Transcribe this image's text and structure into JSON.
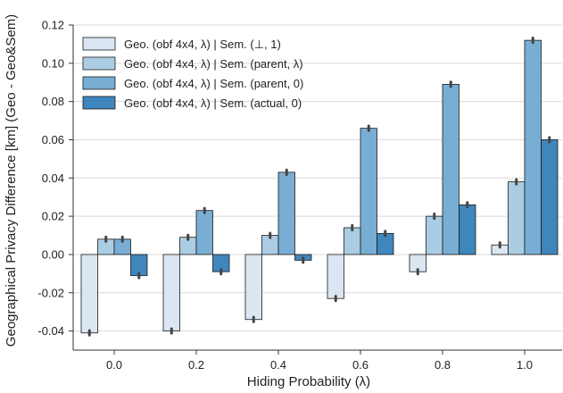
{
  "chart_data": {
    "type": "bar",
    "title": "",
    "xlabel": "Hiding Probability (λ)",
    "ylabel": "Geographical Privacy Difference [km] (Geo - Geo&Sem)",
    "categories": [
      "0.0",
      "0.2",
      "0.4",
      "0.6",
      "0.8",
      "1.0"
    ],
    "ylim": [
      -0.05,
      0.12
    ],
    "yticks": [
      -0.04,
      -0.02,
      0.0,
      0.02,
      0.04,
      0.06,
      0.08,
      0.1,
      0.12
    ],
    "ytick_labels": [
      "-0.04",
      "-0.02",
      "0.00",
      "0.02",
      "0.04",
      "0.06",
      "0.08",
      "0.10",
      "0.12"
    ],
    "grid": "horizontal",
    "legend_position": "top-left",
    "error_bars": true,
    "series": [
      {
        "name": "Geo. (obf 4x4, λ) | Sem. (⊥, 1)",
        "color": "#dae6f2",
        "values": [
          -0.041,
          -0.04,
          -0.034,
          -0.023,
          -0.009,
          0.005
        ]
      },
      {
        "name": "Geo. (obf 4x4, λ) | Sem. (parent, λ)",
        "color": "#aacde4",
        "values": [
          0.008,
          0.009,
          0.01,
          0.014,
          0.02,
          0.038
        ]
      },
      {
        "name": "Geo. (obf 4x4, λ) | Sem. (parent, 0)",
        "color": "#78aed3",
        "values": [
          0.008,
          0.023,
          0.043,
          0.066,
          0.089,
          0.112
        ]
      },
      {
        "name": "Geo. (obf 4x4, λ) | Sem. (actual, 0)",
        "color": "#3f86bd",
        "values": [
          -0.011,
          -0.009,
          -0.003,
          0.011,
          0.026,
          0.06
        ]
      }
    ]
  }
}
